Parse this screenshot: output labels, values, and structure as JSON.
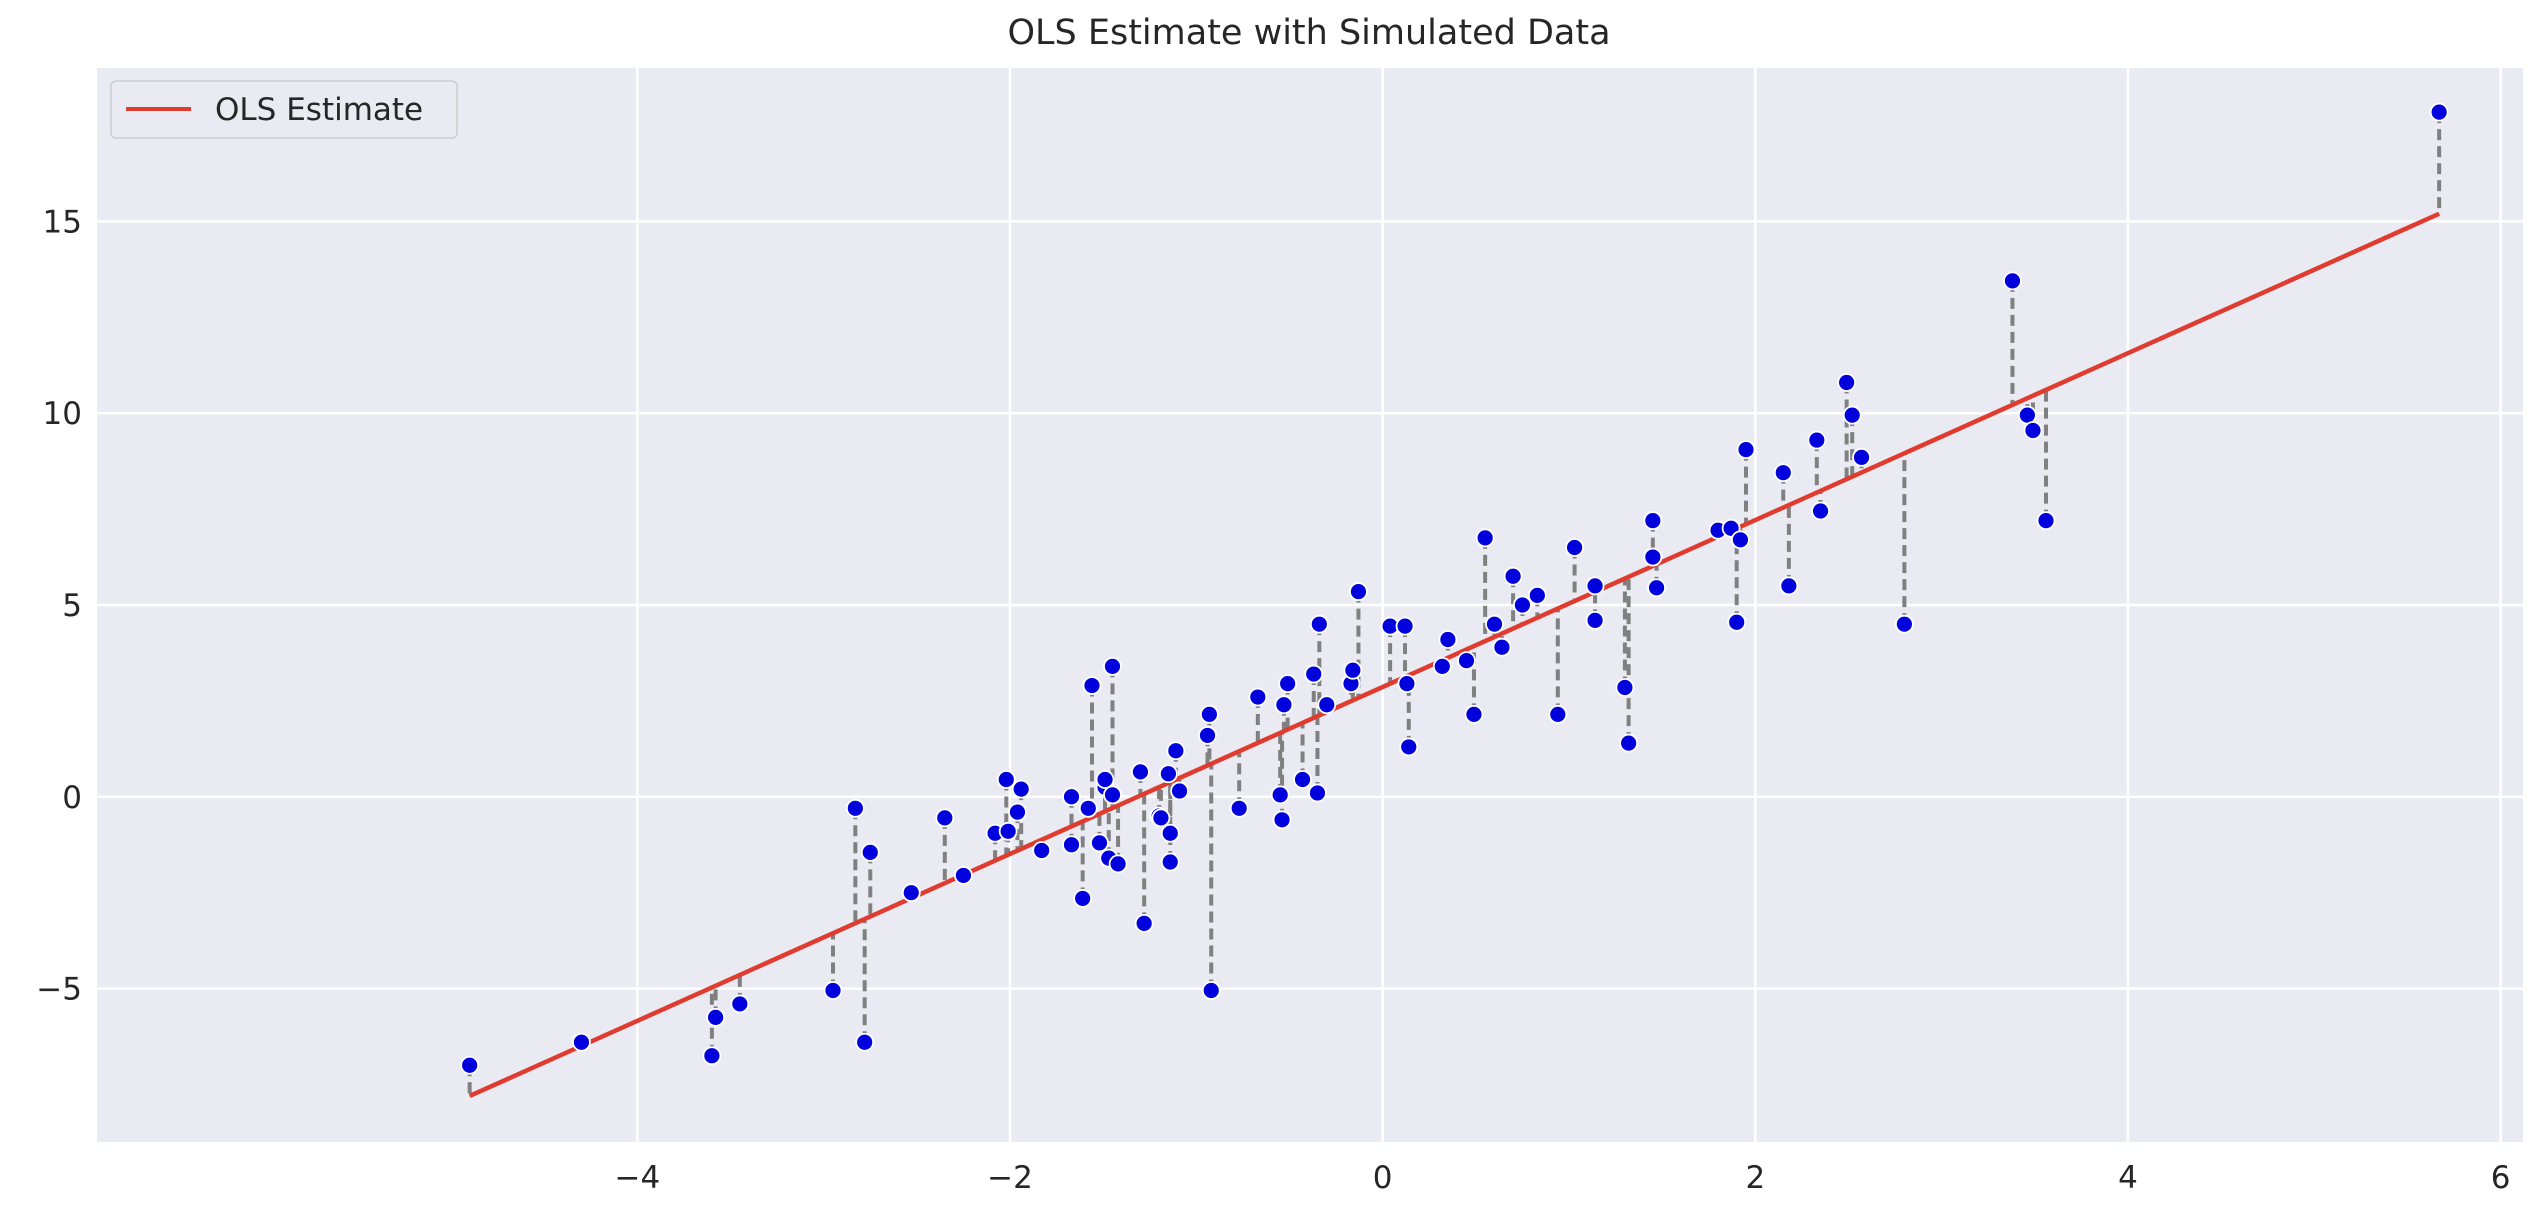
{
  "chart_data": {
    "type": "scatter",
    "title": "OLS Estimate with Simulated Data",
    "xlabel": "",
    "ylabel": "",
    "xlim": [
      -6.9,
      6.12
    ],
    "ylim": [
      -9.0,
      19.0
    ],
    "x_ticks": [
      -4,
      -2,
      0,
      2,
      4,
      6
    ],
    "y_ticks": [
      -5,
      0,
      5,
      10,
      15
    ],
    "x_tick_labels": [
      "−4",
      "−2",
      "0",
      "2",
      "4",
      "6"
    ],
    "y_tick_labels": [
      "−5",
      "0",
      "5",
      "10",
      "15"
    ],
    "grid": true,
    "legend": {
      "entries": [
        "OLS Estimate"
      ],
      "placement": "top-left"
    },
    "colors": {
      "background": "#eaeaf2",
      "line": "#e03b2f",
      "points": "#0000dd",
      "residuals": "#808080",
      "grid": "#ffffff"
    },
    "fit_line": {
      "name": "OLS Estimate",
      "x": [
        -4.9,
        5.67
      ],
      "y": [
        -7.8,
        15.2
      ]
    },
    "points": {
      "x": [
        -4.9,
        -4.3,
        -3.6,
        -3.58,
        -3.45,
        -2.95,
        -2.83,
        -2.78,
        -2.75,
        -2.53,
        -2.35,
        -2.25,
        -2.08,
        -2.02,
        -2.01,
        -1.96,
        -1.94,
        -1.83,
        -1.67,
        -1.67,
        -1.61,
        -1.58,
        -1.56,
        -1.52,
        -1.49,
        -1.49,
        -1.47,
        -1.45,
        -1.45,
        -1.42,
        -1.3,
        -1.28,
        -1.2,
        -1.19,
        -1.15,
        -1.14,
        -1.14,
        -1.11,
        -1.09,
        -0.94,
        -0.93,
        -0.92,
        -0.77,
        -0.67,
        -0.55,
        -0.54,
        -0.53,
        -0.51,
        -0.43,
        -0.37,
        -0.35,
        -0.34,
        -0.3,
        -0.17,
        -0.16,
        -0.13,
        0.04,
        0.12,
        0.14,
        0.13,
        0.32,
        0.35,
        0.45,
        0.49,
        0.55,
        0.6,
        0.64,
        0.7,
        0.75,
        0.83,
        0.94,
        1.03,
        1.14,
        1.14,
        1.3,
        1.32,
        1.45,
        1.45,
        1.47,
        1.8,
        1.87,
        1.9,
        1.92,
        1.95,
        2.15,
        2.18,
        2.33,
        2.35,
        2.49,
        2.52,
        2.57,
        2.8,
        3.38,
        3.46,
        3.49,
        3.56,
        5.67
      ],
      "y": [
        -7.0,
        -6.4,
        -6.75,
        -5.75,
        -5.4,
        -5.05,
        -0.3,
        -6.4,
        -1.45,
        -2.5,
        -0.55,
        -2.05,
        -0.95,
        0.45,
        -0.9,
        -0.4,
        0.2,
        -1.4,
        -1.25,
        0.0,
        -2.65,
        -0.3,
        2.9,
        -1.2,
        0.25,
        0.45,
        -1.6,
        0.05,
        3.4,
        -1.75,
        0.65,
        -3.3,
        -0.5,
        -0.55,
        0.6,
        -1.7,
        -0.95,
        1.2,
        0.15,
        1.6,
        2.15,
        -5.05,
        -0.3,
        2.6,
        0.05,
        -0.6,
        2.4,
        2.95,
        0.45,
        3.2,
        0.1,
        4.5,
        2.4,
        2.95,
        3.3,
        5.35,
        4.45,
        4.45,
        1.3,
        2.95,
        3.4,
        4.1,
        3.55,
        2.15,
        6.75,
        4.5,
        3.9,
        5.75,
        5.0,
        5.25,
        2.15,
        6.5,
        5.5,
        4.6,
        2.85,
        1.4,
        7.2,
        6.25,
        5.45,
        6.95,
        7.0,
        4.55,
        6.7,
        9.05,
        8.45,
        5.5,
        9.3,
        7.45,
        10.8,
        9.95,
        8.85,
        4.5,
        13.45,
        9.95,
        9.55,
        7.2,
        17.85
      ]
    }
  }
}
